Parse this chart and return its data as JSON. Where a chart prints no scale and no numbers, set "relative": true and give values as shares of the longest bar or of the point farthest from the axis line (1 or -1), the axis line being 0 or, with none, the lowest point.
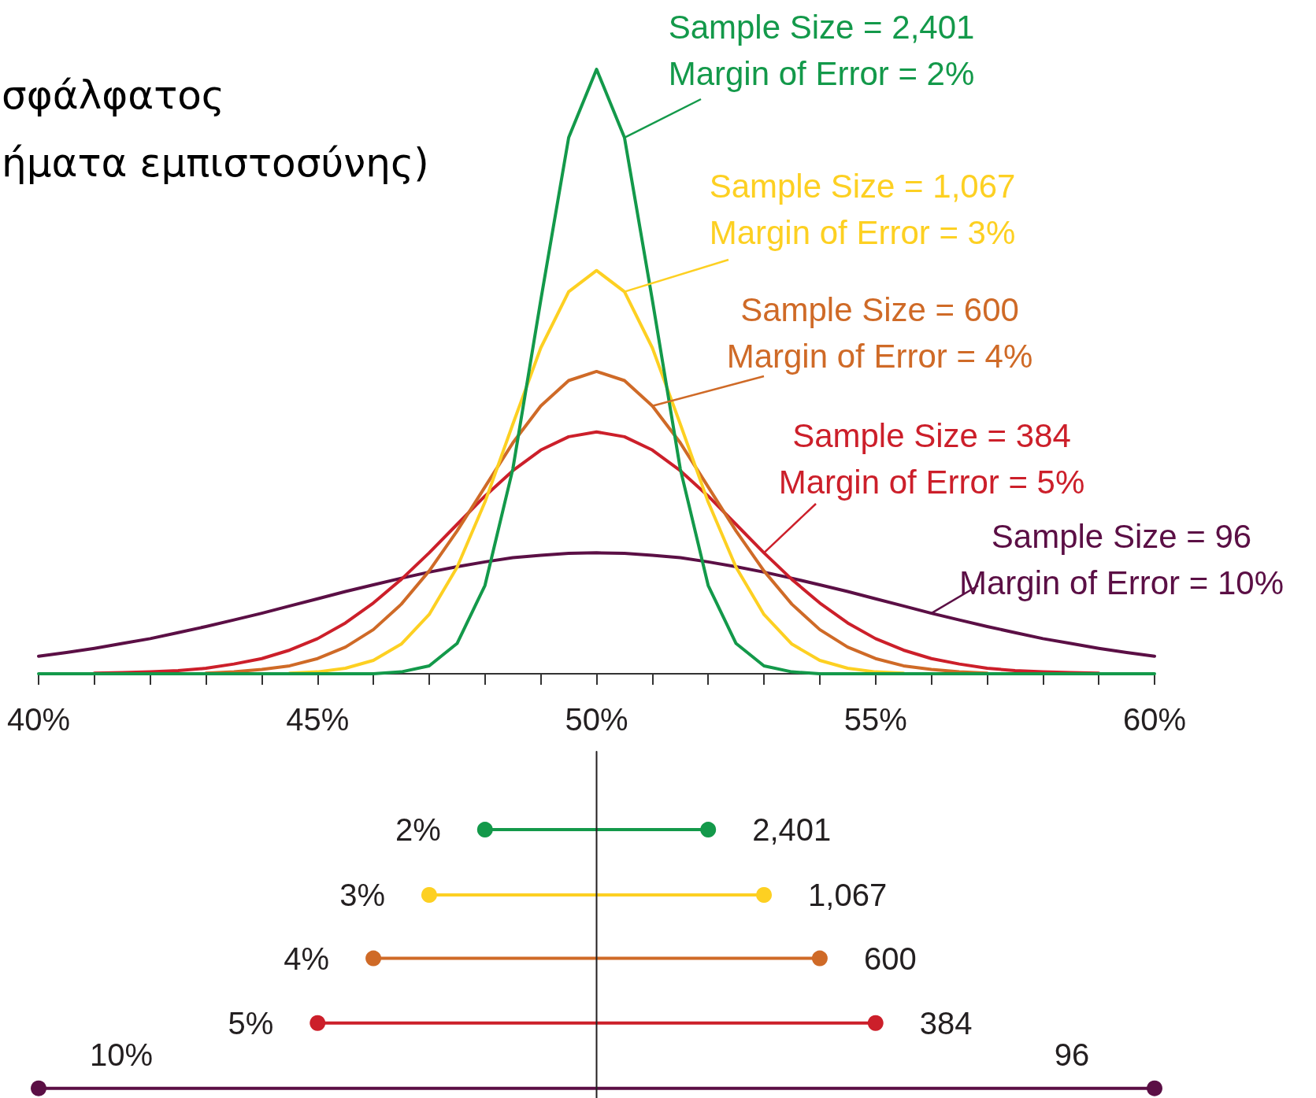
{
  "chart_data": {
    "type": "line",
    "title": "σφάλφατος\nήματα εμπιστοσύνης)",
    "relative": true,
    "marker": "none",
    "xlim": [
      40,
      60
    ],
    "xticks": [
      {
        "value": 40,
        "label": "40%"
      },
      {
        "value": 41,
        "label": null
      },
      {
        "value": 42,
        "label": null
      },
      {
        "value": 43,
        "label": null
      },
      {
        "value": 44,
        "label": null
      },
      {
        "value": 45,
        "label": "45%"
      },
      {
        "value": 46,
        "label": null
      },
      {
        "value": 47,
        "label": null
      },
      {
        "value": 48,
        "label": null
      },
      {
        "value": 49,
        "label": null
      },
      {
        "value": 50,
        "label": "50%"
      },
      {
        "value": 51,
        "label": null
      },
      {
        "value": 52,
        "label": null
      },
      {
        "value": 53,
        "label": null
      },
      {
        "value": 54,
        "label": null
      },
      {
        "value": 55,
        "label": "55%"
      },
      {
        "value": 56,
        "label": null
      },
      {
        "value": 57,
        "label": null
      },
      {
        "value": 58,
        "label": null
      },
      {
        "value": 59,
        "label": null
      },
      {
        "value": 60,
        "label": "60%"
      }
    ],
    "x": [
      40,
      40.5,
      41,
      41.5,
      42,
      42.5,
      43,
      43.5,
      44,
      44.5,
      45,
      45.5,
      46,
      46.5,
      47,
      47.5,
      48,
      48.5,
      49,
      49.5,
      50,
      50.5,
      51,
      51.5,
      52,
      52.5,
      53,
      53.5,
      54,
      54.5,
      55,
      55.5,
      56,
      56.5,
      57,
      57.5,
      58,
      58.5,
      59,
      59.5,
      60
    ],
    "series": [
      {
        "name": "Sample Size = 2,401\nMargin of Error = 2%",
        "color": "#13994a",
        "values": [
          0,
          0,
          0,
          0,
          0,
          0,
          0,
          0,
          0,
          0,
          0,
          0,
          0,
          0.003,
          0.013,
          0.05,
          0.146,
          0.339,
          0.618,
          0.887,
          1,
          0.887,
          0.618,
          0.339,
          0.146,
          0.05,
          0.013,
          0.003,
          0,
          0,
          0,
          0,
          0,
          0,
          0,
          0,
          0,
          0,
          0,
          0,
          0
        ]
      },
      {
        "name": "Sample Size = 1,067\nMargin of Error = 3%",
        "color": "#fdd022",
        "values": [
          null,
          null,
          null,
          null,
          null,
          null,
          null,
          null,
          null,
          0.001,
          0.003,
          0.009,
          0.022,
          0.049,
          0.098,
          0.176,
          0.284,
          0.413,
          0.539,
          0.632,
          0.667,
          0.632,
          0.539,
          0.413,
          0.284,
          0.176,
          0.098,
          0.049,
          0.022,
          0.009,
          0.003,
          0.001,
          null,
          null,
          null,
          null,
          null,
          null,
          null,
          null,
          null
        ]
      },
      {
        "name": "Sample Size = 600\nMargin of Error = 4%",
        "color": "#cf6a27",
        "values": [
          null,
          null,
          null,
          null,
          null,
          null,
          0.001,
          0.003,
          0.007,
          0.013,
          0.025,
          0.044,
          0.073,
          0.115,
          0.17,
          0.236,
          0.309,
          0.382,
          0.443,
          0.485,
          0.5,
          0.485,
          0.443,
          0.382,
          0.309,
          0.236,
          0.17,
          0.115,
          0.073,
          0.044,
          0.025,
          0.013,
          0.007,
          0.003,
          0.001,
          null,
          null,
          null,
          null,
          null,
          null
        ]
      },
      {
        "name": "Sample Size = 384\nMargin of Error = 5%",
        "color": "#cc1f2a",
        "values": [
          null,
          null,
          0.001,
          0.002,
          0.003,
          0.005,
          0.009,
          0.016,
          0.025,
          0.039,
          0.058,
          0.084,
          0.117,
          0.156,
          0.2,
          0.247,
          0.294,
          0.336,
          0.37,
          0.392,
          0.4,
          0.392,
          0.37,
          0.336,
          0.294,
          0.247,
          0.2,
          0.156,
          0.117,
          0.084,
          0.058,
          0.039,
          0.025,
          0.016,
          0.009,
          0.005,
          0.003,
          0.002,
          0.001,
          null,
          null
        ]
      },
      {
        "name": "Sample Size = 96\nMargin of Error = 10%",
        "color": "#5b0f45",
        "values": [
          0.029,
          0.035,
          0.042,
          0.05,
          0.058,
          0.068,
          0.078,
          0.089,
          0.1,
          0.112,
          0.124,
          0.136,
          0.147,
          0.158,
          0.168,
          0.177,
          0.185,
          0.192,
          0.196,
          0.199,
          0.2,
          0.199,
          0.196,
          0.192,
          0.185,
          0.177,
          0.168,
          0.158,
          0.147,
          0.136,
          0.124,
          0.112,
          0.1,
          0.089,
          0.078,
          0.068,
          0.058,
          0.05,
          0.042,
          0.035,
          0.029
        ]
      },
      {
        "x": [
          50,
          50
        ],
        "values": [
          -0.129,
          -0.702
        ],
        "color": "#231f20"
      },
      {
        "x": [
          48,
          52
        ],
        "values": [
          -0.258,
          -0.258
        ],
        "color": "#13994a",
        "marker": "circle"
      },
      {
        "x": [
          47,
          53
        ],
        "values": [
          -0.366,
          -0.366
        ],
        "color": "#fdd022",
        "marker": "circle"
      },
      {
        "x": [
          46,
          54
        ],
        "values": [
          -0.471,
          -0.471
        ],
        "color": "#cf6a27",
        "marker": "circle"
      },
      {
        "x": [
          45,
          55
        ],
        "values": [
          -0.578,
          -0.578
        ],
        "color": "#cc1f2a",
        "marker": "circle"
      },
      {
        "x": [
          40,
          60
        ],
        "values": [
          -0.686,
          -0.686
        ],
        "color": "#5b0f45",
        "marker": "circle"
      }
    ],
    "annotations": [
      {
        "text": "2%",
        "x": 48,
        "y": -0.258
      },
      {
        "text": "2,401",
        "x": 52,
        "y": -0.258
      },
      {
        "text": "3%",
        "x": 47,
        "y": -0.366
      },
      {
        "text": "1,067",
        "x": 53,
        "y": -0.366
      },
      {
        "text": "4%",
        "x": 46,
        "y": -0.471
      },
      {
        "text": "600",
        "x": 54,
        "y": -0.471
      },
      {
        "text": "5%",
        "x": 45,
        "y": -0.578
      },
      {
        "text": "384",
        "x": 55,
        "y": -0.578
      },
      {
        "text": "10%",
        "x": 40,
        "y": -0.686
      },
      {
        "text": "96",
        "x": 60,
        "y": -0.686
      }
    ]
  }
}
